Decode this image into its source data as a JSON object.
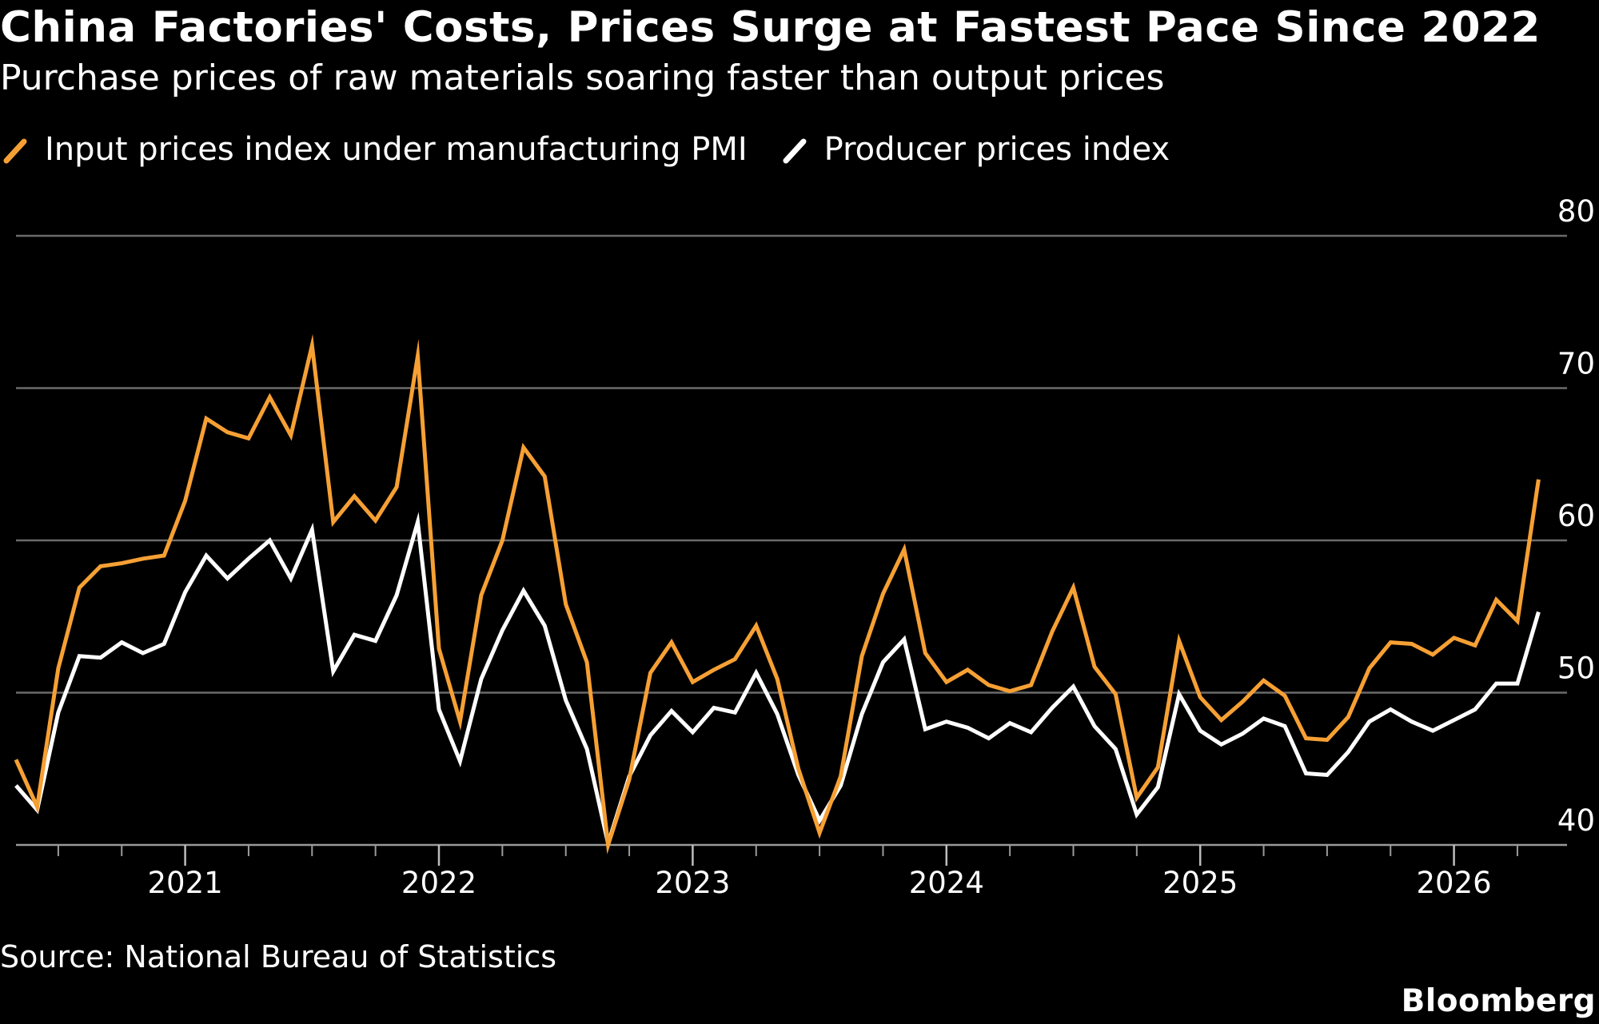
{
  "header": {
    "title": "China Factories' Costs, Prices Surge at Fastest Pace Since 2022",
    "subtitle": "Purchase prices of raw materials soaring faster than output prices"
  },
  "legend": {
    "input_label": "Input prices index under manufacturing PMI",
    "ppi_label": "Producer prices index"
  },
  "footer": {
    "source": "Source: National Bureau of Statistics",
    "brand": "Bloomberg"
  },
  "colors": {
    "input": "#f6a034",
    "ppi": "#ffffff",
    "grid": "#6b6b6b",
    "background": "#000000"
  },
  "chart_data": {
    "type": "line",
    "title": "China Factories' Costs, Prices Surge at Fastest Pace Since 2022",
    "subtitle": "Purchase prices of raw materials soaring faster than output prices",
    "xlabel": "",
    "ylabel": "",
    "ylim": [
      40,
      80
    ],
    "yticks": [
      40,
      50,
      60,
      70,
      80
    ],
    "y_axis_position": "right",
    "grid": true,
    "legend_position": "top-left",
    "x_start": "2020-05",
    "x_end": "2026-04",
    "year_labels": [
      "2021",
      "2022",
      "2023",
      "2024",
      "2025",
      "2026"
    ],
    "series": [
      {
        "name": "Input prices index under manufacturing PMI",
        "color": "#f6a034",
        "values": [
          45.6,
          42.5,
          51.6,
          56.9,
          58.3,
          58.5,
          58.8,
          59.0,
          62.6,
          68.0,
          67.1,
          66.7,
          69.4,
          66.9,
          72.8,
          61.2,
          62.9,
          61.3,
          63.5,
          72.1,
          52.9,
          48.1,
          56.4,
          60.0,
          66.1,
          64.2,
          55.8,
          52.0,
          40.0,
          44.3,
          51.3,
          53.3,
          50.7,
          51.5,
          52.2,
          54.4,
          50.9,
          45.0,
          40.8,
          44.5,
          52.4,
          56.5,
          59.4,
          52.6,
          50.7,
          51.5,
          50.5,
          50.1,
          50.5,
          54.0,
          56.9,
          51.7,
          49.9,
          43.1,
          45.1,
          53.4,
          49.7,
          48.2,
          49.4,
          50.8,
          49.8,
          47.0,
          46.9,
          48.4,
          51.6,
          53.3,
          53.2,
          52.5,
          53.6,
          53.1,
          56.1,
          54.7,
          64.0
        ]
      },
      {
        "name": "Producer prices index",
        "color": "#ffffff",
        "values": [
          43.9,
          42.3,
          48.7,
          52.4,
          52.3,
          53.3,
          52.6,
          53.2,
          56.6,
          59.0,
          57.5,
          58.8,
          60.0,
          57.5,
          60.7,
          51.4,
          53.8,
          53.4,
          56.4,
          61.2,
          48.9,
          45.5,
          50.9,
          54.1,
          56.7,
          54.4,
          49.5,
          46.3,
          40.1,
          44.5,
          47.2,
          48.8,
          47.4,
          49.0,
          48.7,
          51.3,
          48.6,
          44.6,
          41.6,
          43.9,
          48.6,
          52.0,
          53.5,
          47.6,
          48.1,
          47.7,
          47.0,
          48.0,
          47.4,
          49.0,
          50.4,
          47.8,
          46.3,
          42.0,
          43.8,
          49.9,
          47.5,
          46.6,
          47.3,
          48.3,
          47.8,
          44.7,
          44.6,
          46.1,
          48.1,
          48.9,
          48.1,
          47.5,
          48.2,
          48.9,
          50.6,
          50.6,
          55.3
        ]
      }
    ]
  }
}
